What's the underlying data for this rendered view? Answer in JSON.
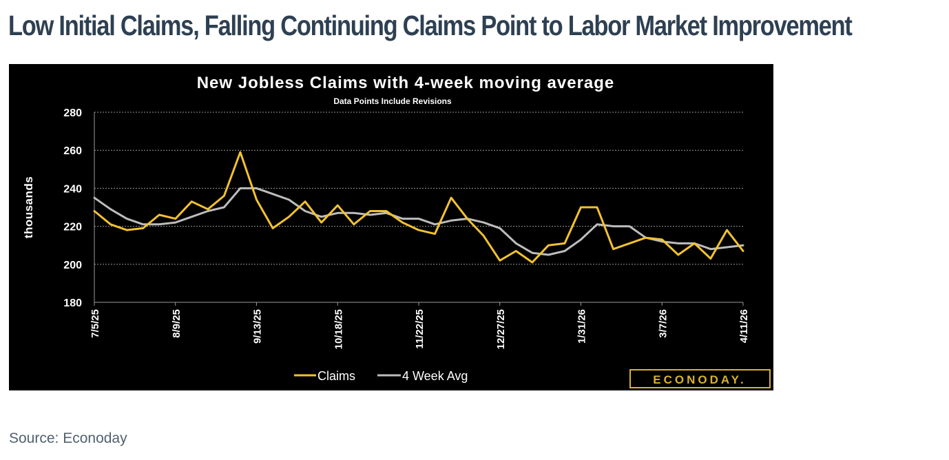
{
  "page": {
    "heading": "Low Initial Claims, Falling Continuing Claims Point to Labor Market Improvement",
    "source": "Source: Econoday"
  },
  "branding": {
    "logo_text": "ECONODAY."
  },
  "colors": {
    "claims": "#f2c230",
    "avg": "#bdbdbd",
    "background": "#000000",
    "heading": "#2e4052",
    "logo": "#d9b32c"
  },
  "chart_data": {
    "type": "line",
    "title": "New Jobless Claims with 4-week moving average",
    "subtitle": "Data Points Include Revisions",
    "xlabel": "",
    "ylabel": "thousands",
    "ylim": [
      180,
      280
    ],
    "yticks": [
      180,
      200,
      220,
      240,
      260,
      280
    ],
    "grid": true,
    "legend_position": "bottom",
    "x": [
      "7/5/25",
      "7/12/25",
      "7/19/25",
      "7/26/25",
      "8/2/25",
      "8/9/25",
      "8/16/25",
      "8/23/25",
      "8/30/25",
      "9/6/25",
      "9/13/25",
      "9/20/25",
      "9/27/25",
      "10/4/25",
      "10/11/25",
      "10/18/25",
      "10/25/25",
      "11/1/25",
      "11/8/25",
      "11/15/25",
      "11/22/25",
      "11/29/25",
      "12/6/25",
      "12/13/25",
      "12/20/25",
      "12/27/25",
      "1/3/26",
      "1/10/26",
      "1/17/26",
      "1/24/26",
      "1/31/26",
      "2/7/26",
      "2/14/26",
      "2/21/26",
      "2/28/26",
      "3/7/26",
      "3/14/26",
      "3/21/26",
      "3/28/26",
      "4/4/26",
      "4/11/26"
    ],
    "xtick_labels": [
      {
        "index": 0,
        "label": "7/5/25"
      },
      {
        "index": 5,
        "label": "8/9/25"
      },
      {
        "index": 10,
        "label": "9/13/25"
      },
      {
        "index": 15,
        "label": "10/18/25"
      },
      {
        "index": 20,
        "label": "11/22/25"
      },
      {
        "index": 25,
        "label": "12/27/25"
      },
      {
        "index": 30,
        "label": "1/31/26"
      },
      {
        "index": 35,
        "label": "3/7/26"
      },
      {
        "index": 40,
        "label": "4/11/26"
      }
    ],
    "series": [
      {
        "name": "Claims",
        "values": [
          228,
          221,
          218,
          219,
          226,
          224,
          233,
          229,
          236,
          259,
          234,
          219,
          225,
          233,
          222,
          231,
          221,
          228,
          228,
          222,
          218,
          216,
          235,
          224,
          215,
          202,
          207,
          201,
          210,
          211,
          230,
          230,
          208,
          211,
          214,
          213,
          205,
          211,
          203,
          218,
          207
        ]
      },
      {
        "name": "4 Week Avg",
        "values": [
          235,
          229,
          224,
          221,
          221,
          222,
          225,
          228,
          230,
          240,
          240,
          237,
          234,
          228,
          225,
          227,
          227,
          226,
          227,
          224,
          224,
          221,
          223,
          224,
          222,
          219,
          211,
          206,
          205,
          207,
          213,
          221,
          220,
          220,
          214,
          212,
          211,
          211,
          208,
          209,
          210
        ]
      }
    ]
  }
}
